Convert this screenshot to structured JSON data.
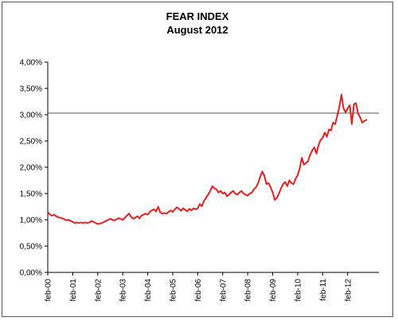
{
  "chart_data": {
    "type": "line",
    "title": "FEAR INDEX",
    "subtitle": "August 2012",
    "xlabel": "",
    "ylabel": "",
    "ylim": [
      0,
      4
    ],
    "y_ticks": [
      0,
      0.5,
      1,
      1.5,
      2,
      2.5,
      3,
      3.5,
      4
    ],
    "y_tick_labels": [
      "0,00%",
      "0,50%",
      "1,00%",
      "1,50%",
      "2,00%",
      "2,50%",
      "3,00%",
      "3,50%",
      "4,00%"
    ],
    "x_tick_labels": [
      "feb-00",
      "feb-01",
      "feb-02",
      "feb-03",
      "feb-04",
      "feb-05",
      "feb-06",
      "feb-07",
      "feb-08",
      "feb-09",
      "feb-10",
      "feb-11",
      "feb-12"
    ],
    "x_start": "feb-00",
    "grid": false,
    "reference_line": {
      "value": 3.03,
      "color": "#555555"
    },
    "series": [
      {
        "color": "#e32020",
        "values": [
          1.15,
          1.1,
          1.08,
          1.1,
          1.07,
          1.05,
          1.04,
          1.03,
          1.01,
          0.99,
          1.0,
          0.98,
          0.96,
          0.94,
          0.95,
          0.94,
          0.95,
          0.94,
          0.95,
          0.94,
          0.95,
          0.98,
          0.96,
          0.94,
          0.92,
          0.93,
          0.94,
          0.96,
          0.98,
          1.0,
          1.02,
          1.0,
          0.99,
          1.01,
          1.03,
          1.02,
          1.0,
          1.04,
          1.08,
          1.12,
          1.06,
          1.02,
          1.04,
          1.07,
          1.03,
          1.08,
          1.1,
          1.12,
          1.1,
          1.15,
          1.18,
          1.2,
          1.16,
          1.25,
          1.14,
          1.12,
          1.13,
          1.12,
          1.15,
          1.18,
          1.15,
          1.2,
          1.24,
          1.21,
          1.17,
          1.22,
          1.19,
          1.16,
          1.21,
          1.18,
          1.22,
          1.2,
          1.22,
          1.3,
          1.26,
          1.36,
          1.42,
          1.48,
          1.55,
          1.64,
          1.6,
          1.58,
          1.52,
          1.55,
          1.5,
          1.52,
          1.45,
          1.48,
          1.52,
          1.55,
          1.5,
          1.48,
          1.52,
          1.55,
          1.5,
          1.48,
          1.46,
          1.5,
          1.52,
          1.58,
          1.62,
          1.7,
          1.82,
          1.92,
          1.84,
          1.68,
          1.7,
          1.62,
          1.52,
          1.38,
          1.42,
          1.5,
          1.6,
          1.68,
          1.72,
          1.64,
          1.75,
          1.7,
          1.68,
          1.78,
          1.85,
          1.98,
          2.18,
          2.05,
          2.08,
          2.12,
          2.24,
          2.32,
          2.38,
          2.26,
          2.42,
          2.52,
          2.56,
          2.66,
          2.58,
          2.72,
          2.7,
          2.85,
          2.82,
          2.98,
          3.15,
          3.38,
          3.12,
          3.05,
          3.12,
          3.18,
          2.82,
          3.2,
          3.22,
          3.02,
          2.95,
          2.85,
          2.88,
          2.9
        ]
      }
    ]
  }
}
